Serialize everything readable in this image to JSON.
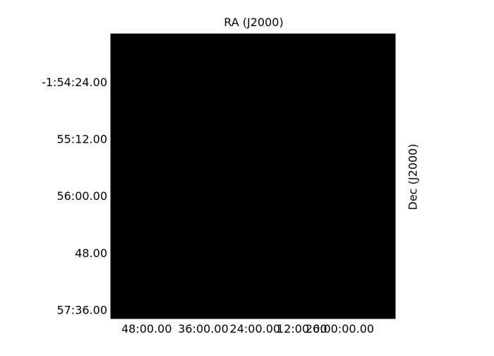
{
  "chart_data": {
    "type": "heatmap",
    "image_color": "#000000",
    "axes_color": "#000000",
    "top_label": "RA (J2000)",
    "right_label": "Dec (J2000)",
    "x_ticks": [
      "48:00.00",
      "36:00.00",
      "24:00.00",
      "12:00.00",
      "26:00:00.00"
    ],
    "x_tick_positions": [
      0.126,
      0.325,
      0.507,
      0.672,
      0.805
    ],
    "y_ticks": [
      "-1:54:24.00",
      "55:12.00",
      "56:00.00",
      "48.00",
      "57:36.00"
    ],
    "y_tick_positions": [
      0.17,
      0.37,
      0.57,
      0.77,
      0.97
    ],
    "grid": false
  }
}
